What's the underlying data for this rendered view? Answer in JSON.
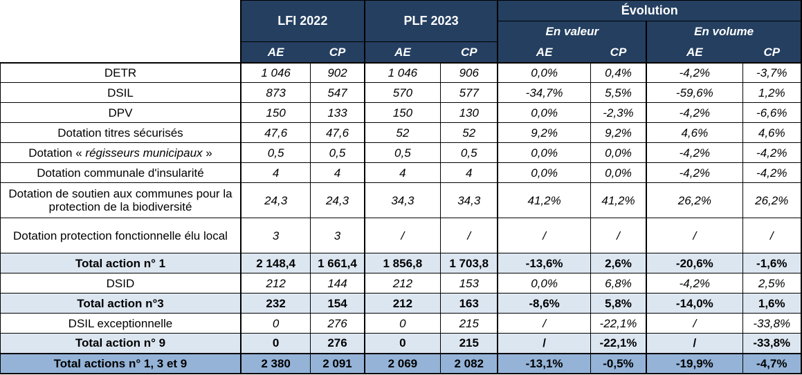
{
  "header": {
    "lfi": "LFI 2022",
    "plf": "PLF 2023",
    "evolution": "Évolution",
    "en_valeur": "En valeur",
    "en_volume": "En volume",
    "ae": "AE",
    "cp": "CP"
  },
  "rows": [
    {
      "label": "DETR",
      "lfi_ae": "1 046",
      "lfi_cp": "902",
      "plf_ae": "1 046",
      "plf_cp": "906",
      "val_ae": "0,0%",
      "val_cp": "0,4%",
      "vol_ae": "-4,2%",
      "vol_cp": "-3,7%"
    },
    {
      "label": "DSIL",
      "lfi_ae": "873",
      "lfi_cp": "547",
      "plf_ae": "570",
      "plf_cp": "577",
      "val_ae": "-34,7%",
      "val_cp": "5,5%",
      "vol_ae": "-59,6%",
      "vol_cp": "1,2%"
    },
    {
      "label": "DPV",
      "lfi_ae": "150",
      "lfi_cp": "133",
      "plf_ae": "150",
      "plf_cp": "130",
      "val_ae": "0,0%",
      "val_cp": "-2,3%",
      "vol_ae": "-4,2%",
      "vol_cp": "-6,6%"
    },
    {
      "label": "Dotation titres sécurisés",
      "lfi_ae": "47,6",
      "lfi_cp": "47,6",
      "plf_ae": "52",
      "plf_cp": "52",
      "val_ae": "9,2%",
      "val_cp": "9,2%",
      "vol_ae": "4,6%",
      "vol_cp": "4,6%"
    },
    {
      "label_prefix": "Dotation « ",
      "label_em": "régisseurs municipaux",
      "label_suffix": " »",
      "lfi_ae": "0,5",
      "lfi_cp": "0,5",
      "plf_ae": "0,5",
      "plf_cp": "0,5",
      "val_ae": "0,0%",
      "val_cp": "0,0%",
      "vol_ae": "-4,2%",
      "vol_cp": "-4,2%"
    },
    {
      "label": "Dotation communale d'insularité",
      "lfi_ae": "4",
      "lfi_cp": "4",
      "plf_ae": "4",
      "plf_cp": "4",
      "val_ae": "0,0%",
      "val_cp": "0,0%",
      "vol_ae": "-4,2%",
      "vol_cp": "-4,2%"
    },
    {
      "label": "Dotation de soutien aux communes pour la protection de la biodiversité",
      "lfi_ae": "24,3",
      "lfi_cp": "24,3",
      "plf_ae": "34,3",
      "plf_cp": "34,3",
      "val_ae": "41,2%",
      "val_cp": "41,2%",
      "vol_ae": "26,2%",
      "vol_cp": "26,2%"
    },
    {
      "label": "Dotation protection fonctionnelle élu local",
      "lfi_ae": "3",
      "lfi_cp": "3",
      "plf_ae": "/",
      "plf_cp": "/",
      "val_ae": "/",
      "val_cp": "/",
      "vol_ae": "/",
      "vol_cp": "/"
    },
    {
      "label": "Total action n° 1",
      "lfi_ae": "2 148,4",
      "lfi_cp": "1 661,4",
      "plf_ae": "1 856,8",
      "plf_cp": "1 703,8",
      "val_ae": "-13,6%",
      "val_cp": "2,6%",
      "vol_ae": "-20,6%",
      "vol_cp": "-1,6%"
    },
    {
      "label": "DSID",
      "lfi_ae": "212",
      "lfi_cp": "144",
      "plf_ae": "212",
      "plf_cp": "153",
      "val_ae": "0,0%",
      "val_cp": "6,8%",
      "vol_ae": "-4,2%",
      "vol_cp": "2,5%"
    },
    {
      "label": "Total action n°3",
      "lfi_ae": "232",
      "lfi_cp": "154",
      "plf_ae": "212",
      "plf_cp": "163",
      "val_ae": "-8,6%",
      "val_cp": "5,8%",
      "vol_ae": "-14,0%",
      "vol_cp": "1,6%"
    },
    {
      "label": "DSIL exceptionnelle",
      "lfi_ae": "0",
      "lfi_cp": "276",
      "plf_ae": "0",
      "plf_cp": "215",
      "val_ae": "/",
      "val_cp": "-22,1%",
      "vol_ae": "/",
      "vol_cp": "-33,8%"
    },
    {
      "label": "Total action n° 9",
      "lfi_ae": "0",
      "lfi_cp": "276",
      "plf_ae": "0",
      "plf_cp": "215",
      "val_ae": "/",
      "val_cp": "-22,1%",
      "vol_ae": "/",
      "vol_cp": "-33,8%"
    },
    {
      "label": "Total actions n° 1, 3 et 9",
      "lfi_ae": "2 380",
      "lfi_cp": "2 091",
      "plf_ae": "2 069",
      "plf_cp": "2 082",
      "val_ae": "-13,1%",
      "val_cp": "-0,5%",
      "vol_ae": "-19,9%",
      "vol_cp": "-4,7%"
    }
  ],
  "colors": {
    "header_bg": "#243f60",
    "subtotal_bg": "#dce6f1",
    "grand_total_bg": "#95b3d7"
  }
}
